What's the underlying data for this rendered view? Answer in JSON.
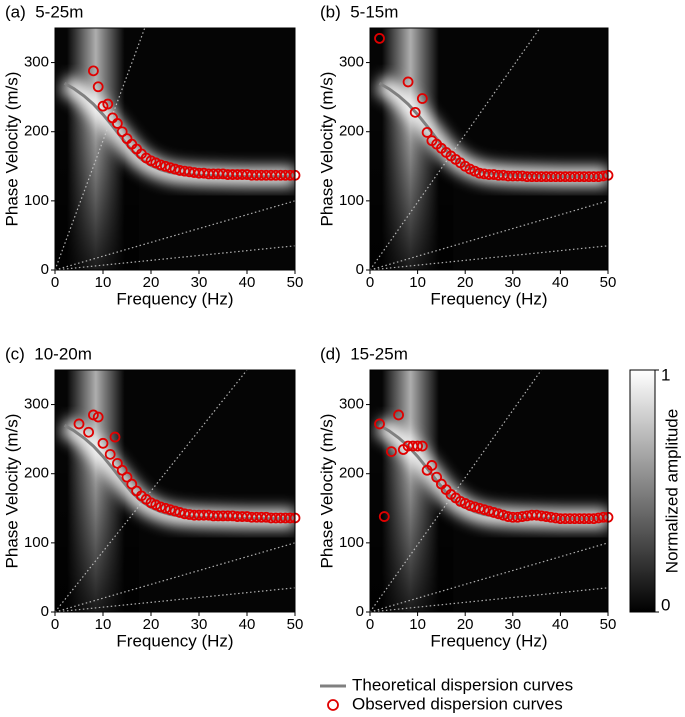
{
  "chart_data": [
    {
      "type": "dispersion",
      "title": "(a)  5-25m",
      "x_label": "Frequency (Hz)",
      "y_label": "Phase Velocity (m/s)",
      "xlim": [
        0,
        50
      ],
      "ylim": [
        0,
        350
      ],
      "xticks": [
        0,
        10,
        20,
        30,
        40,
        50
      ],
      "yticks": [
        0,
        100,
        200,
        300
      ],
      "series": [
        {
          "name": "Theoretical dispersion curves",
          "style": "line",
          "color": "#808080",
          "x": [
            2,
            4,
            6,
            8,
            10,
            12,
            14,
            16,
            18,
            20,
            22,
            24,
            26,
            28,
            30,
            35,
            40,
            45,
            50
          ],
          "values": [
            270,
            262,
            252,
            240,
            225,
            208,
            190,
            173,
            160,
            151,
            145,
            141,
            139,
            138,
            137,
            136,
            135,
            135,
            135
          ]
        },
        {
          "name": "Observed dispersion curves",
          "style": "circle",
          "color": "#e00000",
          "x": [
            8,
            9,
            10,
            11,
            12,
            13,
            14,
            15,
            16,
            17,
            18,
            19,
            20,
            21,
            22,
            23,
            24,
            25,
            26,
            27,
            28,
            29,
            30,
            31,
            32,
            33,
            34,
            35,
            36,
            37,
            38,
            39,
            40,
            41,
            42,
            43,
            44,
            45,
            46,
            47,
            48,
            49,
            50
          ],
          "values": [
            288,
            265,
            237,
            240,
            220,
            212,
            200,
            190,
            182,
            175,
            168,
            162,
            158,
            155,
            152,
            150,
            148,
            146,
            144,
            143,
            142,
            141,
            140,
            140,
            139,
            139,
            139,
            139,
            138,
            138,
            138,
            138,
            138,
            137,
            137,
            137,
            137,
            137,
            137,
            137,
            137,
            137,
            137
          ]
        }
      ],
      "reference_lines": [
        {
          "x": [
            0,
            18.7
          ],
          "values": [
            0,
            350
          ]
        },
        {
          "x": [
            0,
            50
          ],
          "values": [
            0,
            100
          ]
        },
        {
          "x": [
            0,
            50
          ],
          "values": [
            0,
            35
          ]
        }
      ]
    },
    {
      "type": "dispersion",
      "title": "(b)  5-15m",
      "x_label": "Frequency (Hz)",
      "y_label": "Phase Velocity (m/s)",
      "xlim": [
        0,
        50
      ],
      "ylim": [
        0,
        350
      ],
      "xticks": [
        0,
        10,
        20,
        30,
        40,
        50
      ],
      "yticks": [
        0,
        100,
        200,
        300
      ],
      "series": [
        {
          "name": "Theoretical dispersion curves",
          "style": "line",
          "color": "#808080",
          "x": [
            2,
            4,
            6,
            8,
            10,
            12,
            14,
            16,
            18,
            20,
            22,
            24,
            26,
            28,
            30,
            35,
            40,
            45,
            50
          ],
          "values": [
            270,
            262,
            252,
            240,
            225,
            208,
            190,
            173,
            160,
            151,
            145,
            141,
            139,
            138,
            137,
            136,
            135,
            135,
            135
          ]
        },
        {
          "name": "Observed dispersion curves",
          "style": "circle",
          "color": "#e00000",
          "x": [
            2,
            8,
            9.5,
            11,
            12,
            13,
            14,
            15,
            16,
            17,
            18,
            19,
            20,
            21,
            22,
            23,
            24,
            25,
            26,
            27,
            28,
            29,
            30,
            31,
            32,
            33,
            34,
            35,
            36,
            37,
            38,
            39,
            40,
            41,
            42,
            43,
            44,
            45,
            46,
            47,
            48,
            49,
            50
          ],
          "values": [
            335,
            272,
            228,
            248,
            199,
            187,
            182,
            176,
            170,
            165,
            160,
            155,
            150,
            146,
            143,
            140,
            139,
            138,
            138,
            137,
            137,
            136,
            136,
            136,
            136,
            135,
            135,
            135,
            135,
            135,
            135,
            135,
            135,
            135,
            135,
            135,
            135,
            135,
            135,
            135,
            135,
            136,
            137
          ]
        }
      ],
      "reference_lines": [
        {
          "x": [
            0,
            35.7
          ],
          "values": [
            0,
            350
          ]
        },
        {
          "x": [
            0,
            50
          ],
          "values": [
            0,
            100
          ]
        },
        {
          "x": [
            0,
            50
          ],
          "values": [
            0,
            35
          ]
        }
      ]
    },
    {
      "type": "dispersion",
      "title": "(c)  10-20m",
      "x_label": "Frequency (Hz)",
      "y_label": "Phase Velocity (m/s)",
      "xlim": [
        0,
        50
      ],
      "ylim": [
        0,
        350
      ],
      "xticks": [
        0,
        10,
        20,
        30,
        40,
        50
      ],
      "yticks": [
        0,
        100,
        200,
        300
      ],
      "series": [
        {
          "name": "Theoretical dispersion curves",
          "style": "line",
          "color": "#808080",
          "x": [
            2,
            4,
            6,
            8,
            10,
            12,
            14,
            16,
            18,
            20,
            22,
            24,
            26,
            28,
            30,
            35,
            40,
            45,
            50
          ],
          "values": [
            270,
            262,
            252,
            240,
            225,
            208,
            190,
            173,
            160,
            151,
            145,
            141,
            139,
            138,
            137,
            136,
            135,
            135,
            135
          ]
        },
        {
          "name": "Observed dispersion curves",
          "style": "circle",
          "color": "#e00000",
          "x": [
            5,
            7,
            8,
            9,
            10,
            11.5,
            12.5,
            13,
            14,
            15,
            16,
            17,
            18,
            19,
            20,
            21,
            22,
            23,
            24,
            25,
            26,
            27,
            28,
            29,
            30,
            31,
            32,
            33,
            34,
            35,
            36,
            37,
            38,
            39,
            40,
            41,
            42,
            43,
            44,
            45,
            46,
            47,
            48,
            49,
            50
          ],
          "values": [
            272,
            260,
            285,
            282,
            244,
            228,
            253,
            215,
            205,
            195,
            185,
            175,
            168,
            163,
            158,
            155,
            152,
            150,
            148,
            146,
            144,
            142,
            141,
            140,
            140,
            140,
            140,
            139,
            139,
            139,
            139,
            139,
            138,
            138,
            138,
            137,
            137,
            137,
            137,
            136,
            136,
            136,
            136,
            136,
            136
          ]
        }
      ],
      "reference_lines": [
        {
          "x": [
            0,
            40
          ],
          "values": [
            0,
            350
          ]
        },
        {
          "x": [
            0,
            50
          ],
          "values": [
            0,
            100
          ]
        },
        {
          "x": [
            0,
            50
          ],
          "values": [
            0,
            35
          ]
        }
      ]
    },
    {
      "type": "dispersion",
      "title": "(d)  15-25m",
      "x_label": "Frequency (Hz)",
      "y_label": "Phase Velocity (m/s)",
      "xlim": [
        0,
        50
      ],
      "ylim": [
        0,
        350
      ],
      "xticks": [
        0,
        10,
        20,
        30,
        40,
        50
      ],
      "yticks": [
        0,
        100,
        200,
        300
      ],
      "series": [
        {
          "name": "Theoretical dispersion curves",
          "style": "line",
          "color": "#808080",
          "x": [
            2,
            4,
            6,
            8,
            10,
            12,
            14,
            16,
            18,
            20,
            22,
            24,
            26,
            28,
            30,
            35,
            40,
            45,
            50
          ],
          "values": [
            270,
            262,
            252,
            240,
            225,
            208,
            190,
            173,
            160,
            151,
            145,
            141,
            139,
            138,
            137,
            136,
            135,
            135,
            135
          ]
        },
        {
          "name": "Observed dispersion curves",
          "style": "circle",
          "color": "#e00000",
          "x": [
            2,
            3,
            4.5,
            6,
            7,
            8,
            9,
            10,
            11,
            12,
            13,
            14,
            15,
            16,
            17,
            18,
            19,
            20,
            21,
            22,
            23,
            24,
            25,
            26,
            27,
            28,
            29,
            30,
            31,
            32,
            33,
            34,
            35,
            36,
            37,
            38,
            39,
            40,
            41,
            42,
            43,
            44,
            45,
            46,
            47,
            48,
            49,
            50
          ],
          "values": [
            272,
            138,
            232,
            285,
            235,
            240,
            240,
            240,
            240,
            205,
            212,
            195,
            185,
            177,
            170,
            165,
            160,
            157,
            154,
            152,
            150,
            148,
            146,
            144,
            142,
            140,
            138,
            137,
            137,
            138,
            139,
            140,
            140,
            139,
            138,
            137,
            136,
            135,
            135,
            135,
            135,
            135,
            135,
            135,
            135,
            136,
            137,
            137
          ]
        }
      ],
      "reference_lines": [
        {
          "x": [
            0,
            36
          ],
          "values": [
            0,
            350
          ]
        },
        {
          "x": [
            0,
            50
          ],
          "values": [
            0,
            100
          ]
        },
        {
          "x": [
            0,
            50
          ],
          "values": [
            0,
            35
          ]
        }
      ]
    }
  ],
  "colorbar": {
    "label": "Normalized amplitude",
    "ticks": [
      0,
      1
    ]
  }
}
